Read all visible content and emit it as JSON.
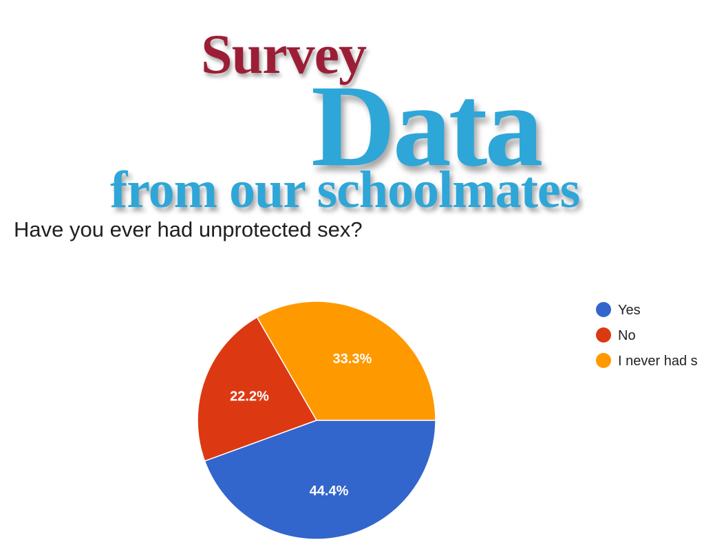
{
  "headline": {
    "line1": "Survey",
    "line2": "Data",
    "line3": "from our schoolmates"
  },
  "question": "Have you ever had unprotected sex?",
  "chart_data": {
    "type": "pie",
    "title": "Have you ever had unprotected sex?",
    "legend_position": "right",
    "slices": [
      {
        "label": "Yes",
        "value": 44.4,
        "display": "44.4%",
        "color": "#3366cc"
      },
      {
        "label": "No",
        "value": 22.2,
        "display": "22.2%",
        "color": "#dc3912"
      },
      {
        "label": "I never had s",
        "value": 33.3,
        "display": "33.3%",
        "color": "#ff9900"
      }
    ]
  }
}
